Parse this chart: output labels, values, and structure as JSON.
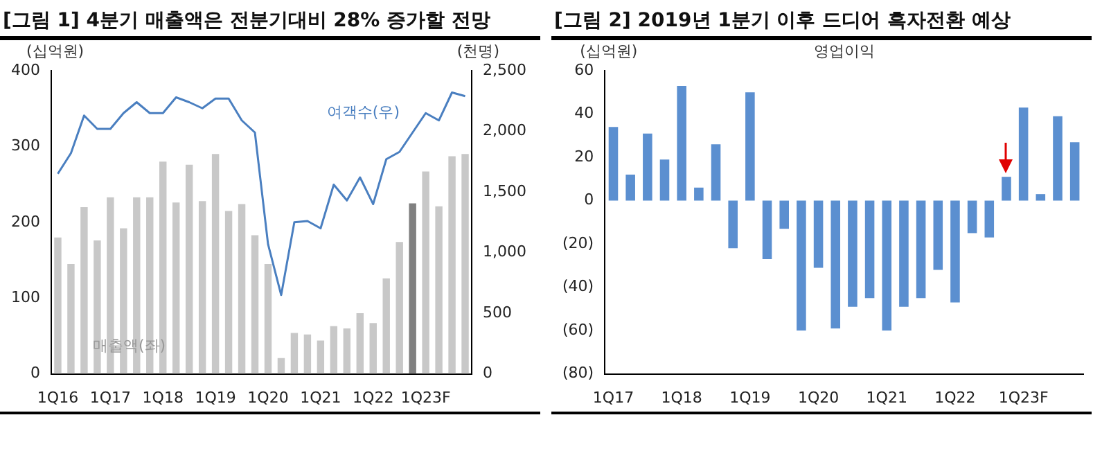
{
  "chart_data": [
    {
      "type": "bar",
      "title": "[그림 1] 4분기 매출액은 전분기대비 28% 증가할 전망",
      "ylabel": "(십억원)",
      "y2label": "(천명)",
      "categories": [
        "1Q16",
        null,
        null,
        null,
        "1Q17",
        null,
        null,
        null,
        "1Q18",
        null,
        null,
        null,
        "1Q19",
        null,
        null,
        null,
        "1Q20",
        null,
        null,
        null,
        "1Q21",
        null,
        null,
        null,
        "1Q22",
        null,
        null,
        null,
        "1Q23F",
        null,
        null,
        null
      ],
      "series": [
        {
          "name": "매출액(좌)",
          "colors": [
            "#c8c8c8",
            "#c8c8c8",
            "#c8c8c8",
            "#c8c8c8",
            "#c8c8c8",
            "#c8c8c8",
            "#c8c8c8",
            "#c8c8c8",
            "#c8c8c8",
            "#c8c8c8",
            "#c8c8c8",
            "#c8c8c8",
            "#c8c8c8",
            "#c8c8c8",
            "#c8c8c8",
            "#c8c8c8",
            "#c8c8c8",
            "#c8c8c8",
            "#c8c8c8",
            "#c8c8c8",
            "#c8c8c8",
            "#c8c8c8",
            "#c8c8c8",
            "#c8c8c8",
            "#c8c8c8",
            "#c8c8c8",
            "#c8c8c8",
            "#808080",
            "#c8c8c8",
            "#c8c8c8",
            "#c8c8c8",
            "#c8c8c8"
          ],
          "values": [
            180,
            145,
            220,
            176,
            233,
            192,
            233,
            233,
            280,
            226,
            276,
            228,
            290,
            215,
            224,
            183,
            145,
            21,
            54,
            52,
            44,
            63,
            60,
            80,
            67,
            126,
            174,
            225,
            267,
            221,
            287,
            290
          ]
        },
        {
          "name": "여객수(우)",
          "type": "line",
          "axis": "y2",
          "color": "#4a7fc0",
          "values": [
            1650,
            1820,
            2130,
            2020,
            2020,
            2150,
            2240,
            2150,
            2150,
            2280,
            2240,
            2190,
            2270,
            2270,
            2090,
            1990,
            1070,
            650,
            1250,
            1260,
            1200,
            1560,
            1430,
            1620,
            1400,
            1770,
            1830,
            1990,
            2150,
            2090,
            2320,
            2290
          ]
        }
      ],
      "ylim": [
        0,
        400
      ],
      "yticks": [
        0,
        100,
        200,
        300,
        400
      ],
      "y2lim": [
        0,
        2500
      ],
      "y2ticks": [
        0,
        {
          "value": 500,
          "label": "500"
        },
        {
          "value": 1000,
          "label": "1,000"
        },
        {
          "value": 1500,
          "label": "1,500"
        },
        {
          "value": 2000,
          "label": "2,000"
        },
        {
          "value": 2500,
          "label": "2,500"
        }
      ]
    },
    {
      "type": "bar",
      "title": "[그림 2] 2019년 1분기 이후 드디어 흑자전환 예상",
      "ylabel": "(십억원)",
      "categories": [
        "1Q17",
        null,
        null,
        null,
        "1Q18",
        null,
        null,
        null,
        "1Q19",
        null,
        null,
        null,
        "1Q20",
        null,
        null,
        null,
        "1Q21",
        null,
        null,
        null,
        "1Q22",
        null,
        null,
        null,
        "1Q23F",
        null,
        null,
        null
      ],
      "series": [
        {
          "name": "영업이익",
          "color": "#5b8fd0",
          "values": [
            34,
            12,
            31,
            19,
            53,
            6,
            26,
            -22,
            50,
            -27,
            -13,
            -60,
            -31,
            -59,
            -49,
            -45,
            -60,
            -49,
            -45,
            -32,
            -47,
            -15,
            -17,
            11,
            43,
            3,
            39,
            27
          ]
        }
      ],
      "ylim": [
        -80,
        60
      ],
      "yticks": [
        {
          "value": -80,
          "label": "(80)"
        },
        {
          "value": -60,
          "label": "(60)"
        },
        {
          "value": -40,
          "label": "(40)"
        },
        {
          "value": -20,
          "label": "(20)"
        },
        0,
        20,
        40,
        60
      ]
    }
  ]
}
